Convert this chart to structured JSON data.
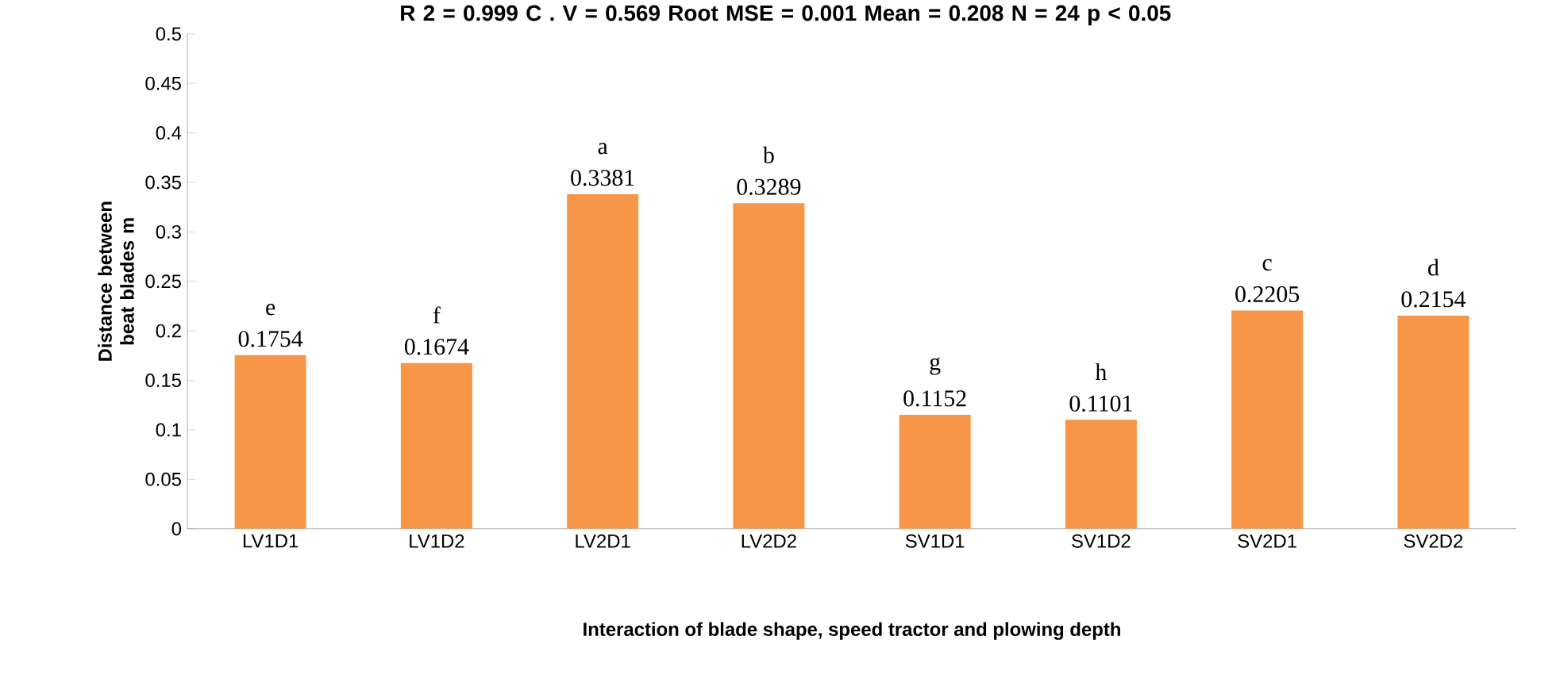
{
  "chart_data": {
    "type": "bar",
    "title": "R 2 = 0.999     C . V = 0.569     Root MSE = 0.001     Mean = 0.208     N = 24     p < 0.05",
    "xlabel": "Interaction of blade shape, speed tractor and plowing depth",
    "ylabel": "Distance between beat blades     m",
    "categories": [
      "LV1D1",
      "LV1D2",
      "LV2D1",
      "LV2D2",
      "SV1D1",
      "SV1D2",
      "SV2D1",
      "SV2D2"
    ],
    "values": [
      0.1754,
      0.1674,
      0.3381,
      0.3289,
      0.1152,
      0.1101,
      0.2205,
      0.2154
    ],
    "color": "#f79646",
    "ylim": [
      0,
      0.5
    ],
    "yticks": [
      0,
      0.05,
      0.1,
      0.15,
      0.2,
      0.25,
      0.3,
      0.35,
      0.4,
      0.45,
      0.5
    ],
    "data_labels": true,
    "annotations": [
      {
        "text": "e",
        "x": "LV1D1",
        "y": 0.1754
      },
      {
        "text": "f",
        "x": "LV1D2",
        "y": 0.1674
      },
      {
        "text": "a",
        "x": "LV2D1",
        "y": 0.3381
      },
      {
        "text": "b",
        "x": "LV2D2",
        "y": 0.3289
      },
      {
        "text": "g",
        "x": "SV1D1",
        "y": 0.1152
      },
      {
        "text": "h",
        "x": "SV1D2",
        "y": 0.1101
      },
      {
        "text": "c",
        "x": "SV2D1",
        "y": 0.2205
      },
      {
        "text": "d",
        "x": "SV2D2",
        "y": 0.2154
      }
    ]
  }
}
